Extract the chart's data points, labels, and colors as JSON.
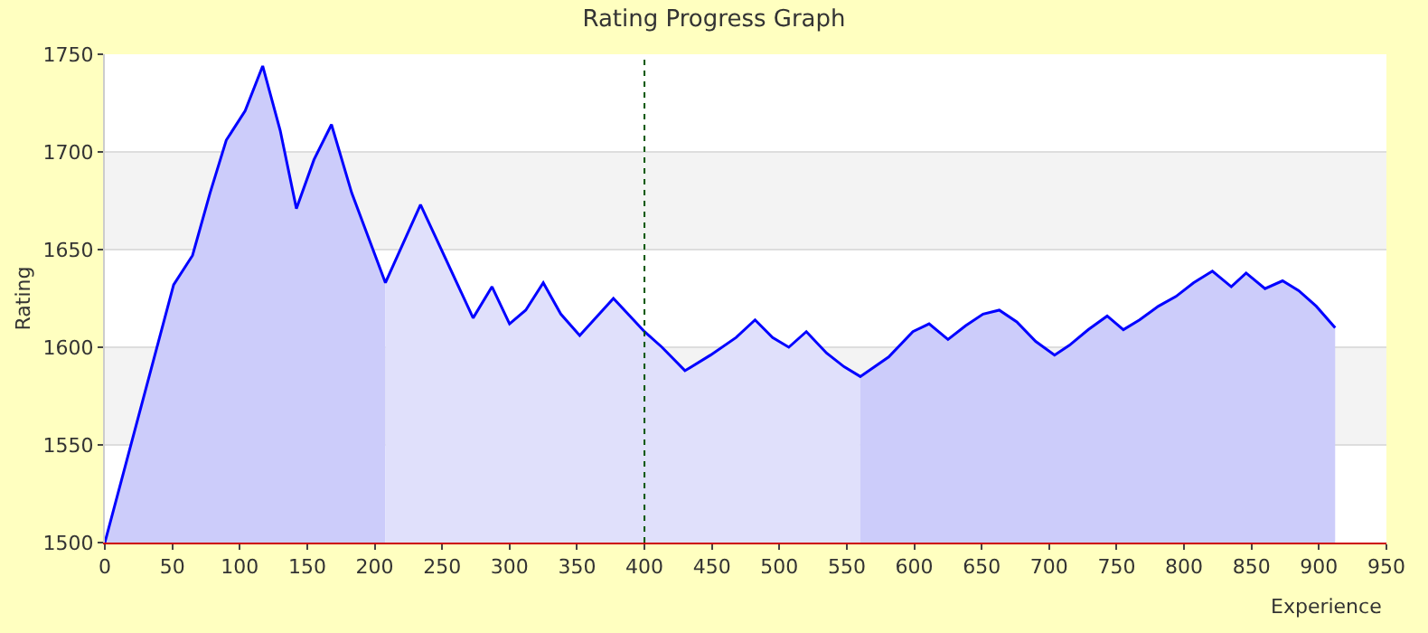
{
  "chart_data": {
    "type": "area",
    "title": "Rating Progress Graph",
    "xlabel": "Experience",
    "ylabel": "Rating",
    "xlim": [
      0,
      950
    ],
    "xticks": [
      0,
      50,
      100,
      150,
      200,
      250,
      300,
      350,
      400,
      450,
      500,
      550,
      600,
      650,
      700,
      750,
      800,
      850,
      900,
      950
    ],
    "ylim": [
      1500,
      1750
    ],
    "yticks": [
      1500,
      1550,
      1600,
      1650,
      1700,
      1750
    ],
    "grid": "y",
    "series": [
      {
        "color": "#ccccfa",
        "x": [
          0,
          51,
          65,
          78,
          90,
          104,
          117,
          130,
          142,
          155,
          168,
          183,
          208
        ],
        "values": [
          1500,
          1632,
          1647,
          1679,
          1706,
          1721,
          1744,
          1711,
          1671,
          1696,
          1714,
          1679,
          1633
        ]
      },
      {
        "color": "#e0e0fb",
        "x": [
          208,
          234,
          273,
          287,
          300,
          312,
          325,
          338,
          352,
          377,
          400,
          413,
          430,
          449,
          468,
          482,
          495,
          507,
          520,
          535,
          548,
          560
        ],
        "values": [
          1633,
          1673,
          1615,
          1631,
          1612,
          1619,
          1633,
          1617,
          1606,
          1625,
          1608,
          1600,
          1588,
          1596,
          1605,
          1614,
          1605,
          1600,
          1608,
          1597,
          1590,
          1585
        ]
      },
      {
        "color": "#ccccfa",
        "x": [
          560,
          581,
          599,
          611,
          625,
          638,
          651,
          663,
          676,
          690,
          704,
          715,
          729,
          743,
          755,
          767,
          781,
          794,
          807,
          821,
          835,
          846,
          860,
          873,
          885,
          898,
          912
        ],
        "values": [
          1585,
          1595,
          1608,
          1612,
          1604,
          1611,
          1617,
          1619,
          1613,
          1603,
          1596,
          1601,
          1609,
          1616,
          1609,
          1614,
          1621,
          1626,
          1633,
          1639,
          1631,
          1638,
          1630,
          1634,
          1629,
          1621,
          1610
        ]
      },
      {
        "type": "line",
        "color": "#0000ff",
        "x": [
          0,
          51,
          65,
          78,
          90,
          104,
          117,
          130,
          142,
          155,
          168,
          183,
          208,
          234,
          273,
          287,
          300,
          312,
          325,
          338,
          352,
          377,
          400,
          413,
          430,
          449,
          468,
          482,
          495,
          507,
          520,
          535,
          548,
          560,
          581,
          599,
          611,
          625,
          638,
          651,
          663,
          676,
          690,
          704,
          715,
          729,
          743,
          755,
          767,
          781,
          794,
          807,
          821,
          835,
          846,
          860,
          873,
          885,
          898,
          912
        ],
        "values": [
          1500,
          1632,
          1647,
          1679,
          1706,
          1721,
          1744,
          1711,
          1671,
          1696,
          1714,
          1679,
          1633,
          1673,
          1615,
          1631,
          1612,
          1619,
          1633,
          1617,
          1606,
          1625,
          1608,
          1600,
          1588,
          1596,
          1605,
          1614,
          1605,
          1600,
          1608,
          1597,
          1590,
          1585,
          1595,
          1608,
          1612,
          1604,
          1611,
          1617,
          1619,
          1613,
          1603,
          1596,
          1601,
          1609,
          1616,
          1609,
          1614,
          1621,
          1626,
          1633,
          1639,
          1631,
          1638,
          1630,
          1634,
          1629,
          1621,
          1610
        ]
      }
    ],
    "bands": [
      {
        "axis": "y",
        "from": 1550,
        "to": 1600,
        "color": "#f3f3f3"
      },
      {
        "axis": "y",
        "from": 1650,
        "to": 1700,
        "color": "#f3f3f3"
      }
    ],
    "ref_lines": [
      {
        "axis": "x",
        "value": 400,
        "color": "#005500",
        "line_style": "dotted"
      }
    ]
  }
}
